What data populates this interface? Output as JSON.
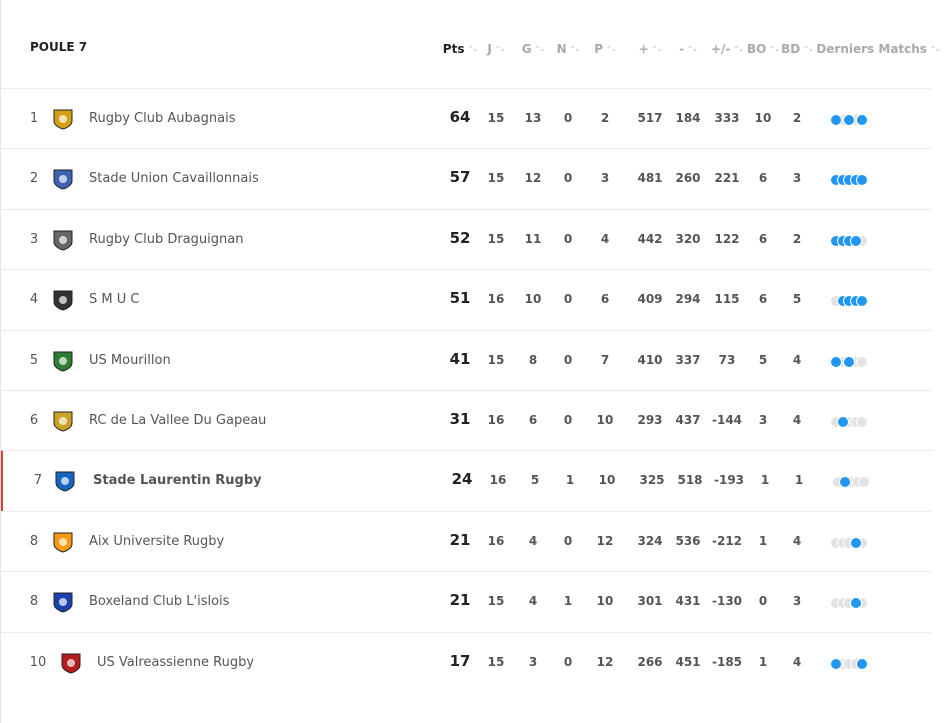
{
  "header": {
    "title": "POULE 7"
  },
  "table": {
    "columns": [
      "Pts",
      "J",
      "G",
      "N",
      "P",
      "+",
      "-",
      "+/-",
      "BO",
      "BD",
      "Derniers Matchs"
    ],
    "rows": [
      {
        "rank": 1,
        "team": "Rugby Club Aubagnais",
        "stats": [
          64,
          15,
          13,
          0,
          2,
          517,
          184,
          333,
          10,
          2
        ]
      },
      {
        "rank": 2,
        "team": "Stade Union Cavaillonnais",
        "stats": [
          57,
          15,
          12,
          0,
          3,
          481,
          260,
          221,
          6,
          3
        ]
      },
      {
        "rank": 3,
        "team": "Rugby Club Draguignan",
        "stats": [
          52,
          15,
          11,
          0,
          4,
          442,
          320,
          122,
          6,
          2
        ]
      },
      {
        "rank": 4,
        "team": "S M U C",
        "stats": [
          51,
          16,
          10,
          0,
          6,
          409,
          294,
          115,
          6,
          5
        ]
      },
      {
        "rank": 5,
        "team": "US Mourillon",
        "stats": [
          41,
          15,
          8,
          0,
          7,
          410,
          337,
          73,
          5,
          4
        ]
      },
      {
        "rank": 6,
        "team": "RC de La Vallee Du Gapeau",
        "stats": [
          31,
          16,
          6,
          0,
          10,
          293,
          437,
          -144,
          3,
          4
        ]
      },
      {
        "rank": 7,
        "team": "Stade Laurentin Rugby",
        "stats": [
          24,
          16,
          5,
          1,
          10,
          325,
          518,
          -193,
          1,
          1
        ]
      },
      {
        "rank": 8,
        "team": "Aix Universite Rugby",
        "stats": [
          21,
          16,
          4,
          0,
          12,
          324,
          536,
          -212,
          1,
          4
        ]
      },
      {
        "rank": 8,
        "team": "Boxeland Club L'islois",
        "stats": [
          21,
          15,
          4,
          1,
          10,
          301,
          431,
          -130,
          0,
          3
        ]
      },
      {
        "rank": 10,
        "team": "US Valreassienne Rugby",
        "stats": [
          17,
          15,
          3,
          0,
          12,
          266,
          451,
          -185,
          1,
          4
        ]
      }
    ]
  }
}
